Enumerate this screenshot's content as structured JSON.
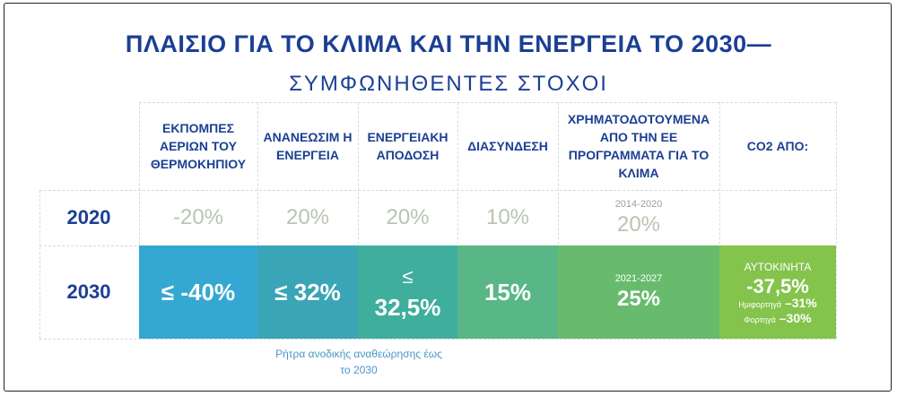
{
  "title": "ΠΛΑΙΣΙΟ ΓΙΑ ΤΟ ΚΛΙΜΑ ΚΑΙ ΤΗΝ ΕΝΕΡΓΕΙΑ ΤΟ 2030—",
  "subtitle": "ΣΥΜΦΩΝΗΘΕΝΤΕΣ ΣΤΟΧΟΙ",
  "headers": [
    "ΕΚΠΟΜΠΕΣ ΑΕΡΙΩΝ ΤΟΥ ΘΕΡΜΟΚΗΠΙΟΥ",
    "ΑΝΑΝΕΩΣΙΜ Η ΕΝΕΡΓΕΙΑ",
    "ΕΝΕΡΓΕΙΑΚΗ ΑΠΟΔΟΣΗ",
    "ΔΙΑΣΥΝΔΕΣΗ",
    "ΧΡΗΜΑΤΟΔΟΤΟΥΜΕΝΑ ΑΠΟ ΤΗΝ ΕΕ ΠΡΟΓΡΑΜΜΑΤΑ ΓΙΑ ΤΟ ΚΛΙΜΑ",
    "CO2 ΑΠΟ:"
  ],
  "rows": {
    "y2020": {
      "label": "2020",
      "values": [
        "-20%",
        "20%",
        "20%",
        "10%",
        "20%",
        ""
      ],
      "funding_period": "2014-2020"
    },
    "y2030": {
      "label": "2030",
      "values": [
        "≤ -40%",
        "≤ 32%",
        "≤",
        "15%",
        "25%"
      ],
      "efficiency_value": "32,5%",
      "funding_period": "2021-2027",
      "co2": {
        "cars_label": "ΑΥΤΟΚΙΝΗΤΑ",
        "cars_value": "-37,5%",
        "vans_label": "Ημιφορτηγά",
        "vans_value": "–31%",
        "trucks_label": "Φορτηγά",
        "trucks_value": "–30%"
      }
    }
  },
  "note": "Ρήτρα ανοδικής αναθεώρησης έως το 2030",
  "colors": {
    "title": "#1b3f94",
    "col1": "#34a8d2",
    "col2": "#3aa5b6",
    "col3": "#3fae9d",
    "col4": "#59b686",
    "col5": "#68bb6d",
    "col6": "#84c34c"
  }
}
